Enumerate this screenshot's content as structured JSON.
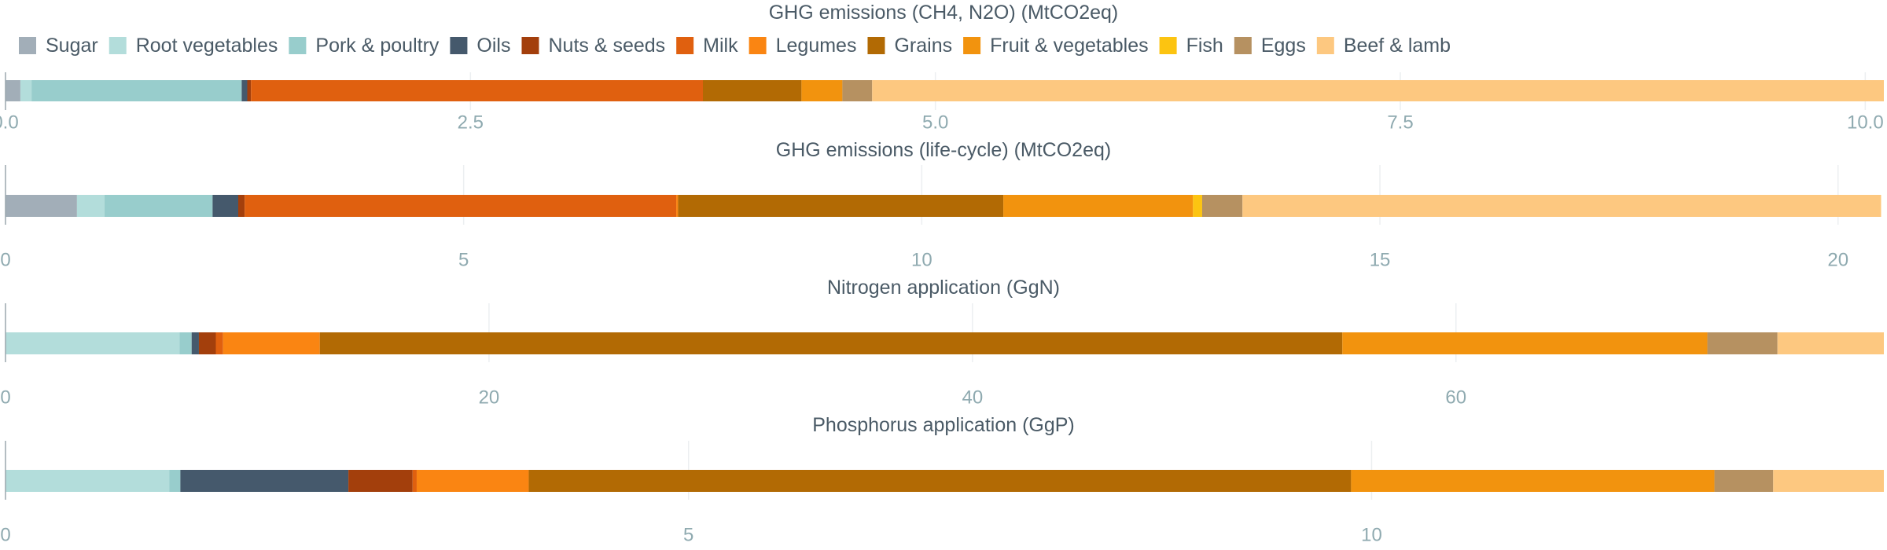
{
  "legend": [
    {
      "name": "Sugar",
      "color": "#a2aeb8"
    },
    {
      "name": "Root vegetables",
      "color": "#b3dddb"
    },
    {
      "name": "Pork & poultry",
      "color": "#98cdcc"
    },
    {
      "name": "Oils",
      "color": "#45596c"
    },
    {
      "name": "Nuts & seeds",
      "color": "#a33f0c"
    },
    {
      "name": "Milk",
      "color": "#e0600f"
    },
    {
      "name": "Legumes",
      "color": "#fa8512"
    },
    {
      "name": "Grains",
      "color": "#b26a04"
    },
    {
      "name": "Fruit & vegetables",
      "color": "#f2930e"
    },
    {
      "name": "Fish",
      "color": "#fcc411"
    },
    {
      "name": "Eggs",
      "color": "#b69161"
    },
    {
      "name": "Beef & lamb",
      "color": "#fdc880"
    }
  ],
  "chart_data": [
    {
      "type": "bar",
      "orientation": "horizontal",
      "stacked": true,
      "title": "GHG emissions (CH4, N2O) (MtCO2eq)",
      "xlim": [
        0,
        10.1
      ],
      "ticks": [
        0,
        2.5,
        5,
        7.5,
        10
      ],
      "tick_labels": [
        "0.0",
        "2.5",
        "5.0",
        "7.5",
        "10.0"
      ],
      "series": [
        {
          "name": "Sugar",
          "value": 0.08
        },
        {
          "name": "Root vegetables",
          "value": 0.06
        },
        {
          "name": "Pork & poultry",
          "value": 1.13
        },
        {
          "name": "Oils",
          "value": 0.03
        },
        {
          "name": "Nuts & seeds",
          "value": 0.02
        },
        {
          "name": "Milk",
          "value": 2.43
        },
        {
          "name": "Legumes",
          "value": 0.0
        },
        {
          "name": "Grains",
          "value": 0.53
        },
        {
          "name": "Fruit & vegetables",
          "value": 0.22
        },
        {
          "name": "Fish",
          "value": 0.0
        },
        {
          "name": "Eggs",
          "value": 0.16
        },
        {
          "name": "Beef & lamb",
          "value": 5.44
        }
      ]
    },
    {
      "type": "bar",
      "orientation": "horizontal",
      "stacked": true,
      "title": "GHG emissions (life-cycle) (MtCO2eq)",
      "xlim": [
        0,
        20.5
      ],
      "ticks": [
        0,
        5,
        10,
        15,
        20
      ],
      "tick_labels": [
        "0",
        "5",
        "10",
        "15",
        "20"
      ],
      "series": [
        {
          "name": "Sugar",
          "value": 0.78
        },
        {
          "name": "Root vegetables",
          "value": 0.3
        },
        {
          "name": "Pork & poultry",
          "value": 1.18
        },
        {
          "name": "Oils",
          "value": 0.28
        },
        {
          "name": "Nuts & seeds",
          "value": 0.07
        },
        {
          "name": "Milk",
          "value": 4.71
        },
        {
          "name": "Legumes",
          "value": 0.02
        },
        {
          "name": "Grains",
          "value": 3.55
        },
        {
          "name": "Fruit & vegetables",
          "value": 2.07
        },
        {
          "name": "Fish",
          "value": 0.1
        },
        {
          "name": "Eggs",
          "value": 0.44
        },
        {
          "name": "Beef & lamb",
          "value": 6.97
        }
      ]
    },
    {
      "type": "bar",
      "orientation": "horizontal",
      "stacked": true,
      "title": "Nitrogen application (GgN)",
      "xlim": [
        0,
        77.7
      ],
      "ticks": [
        0,
        20,
        40,
        60
      ],
      "tick_labels": [
        "0",
        "20",
        "40",
        "60"
      ],
      "series": [
        {
          "name": "Sugar",
          "value": 0.0
        },
        {
          "name": "Root vegetables",
          "value": 7.2
        },
        {
          "name": "Pork & poultry",
          "value": 0.5
        },
        {
          "name": "Oils",
          "value": 0.3
        },
        {
          "name": "Nuts & seeds",
          "value": 0.7
        },
        {
          "name": "Milk",
          "value": 0.3
        },
        {
          "name": "Legumes",
          "value": 4.0
        },
        {
          "name": "Grains",
          "value": 42.3
        },
        {
          "name": "Fruit & vegetables",
          "value": 15.1
        },
        {
          "name": "Fish",
          "value": 0.0
        },
        {
          "name": "Eggs",
          "value": 2.9
        },
        {
          "name": "Beef & lamb",
          "value": 4.4
        }
      ]
    },
    {
      "type": "bar",
      "orientation": "horizontal",
      "stacked": true,
      "title": "Phosphorus application (GgP)",
      "xlim": [
        0,
        13.75
      ],
      "ticks": [
        0,
        5,
        10
      ],
      "tick_labels": [
        "0",
        "5",
        "10"
      ],
      "series": [
        {
          "name": "Sugar",
          "value": 0.0
        },
        {
          "name": "Root vegetables",
          "value": 1.2
        },
        {
          "name": "Pork & poultry",
          "value": 0.08
        },
        {
          "name": "Oils",
          "value": 1.23
        },
        {
          "name": "Nuts & seeds",
          "value": 0.47
        },
        {
          "name": "Milk",
          "value": 0.03
        },
        {
          "name": "Legumes",
          "value": 0.82
        },
        {
          "name": "Grains",
          "value": 6.02
        },
        {
          "name": "Fruit & vegetables",
          "value": 2.66
        },
        {
          "name": "Fish",
          "value": 0.0
        },
        {
          "name": "Eggs",
          "value": 0.43
        },
        {
          "name": "Beef & lamb",
          "value": 0.81
        }
      ]
    }
  ]
}
